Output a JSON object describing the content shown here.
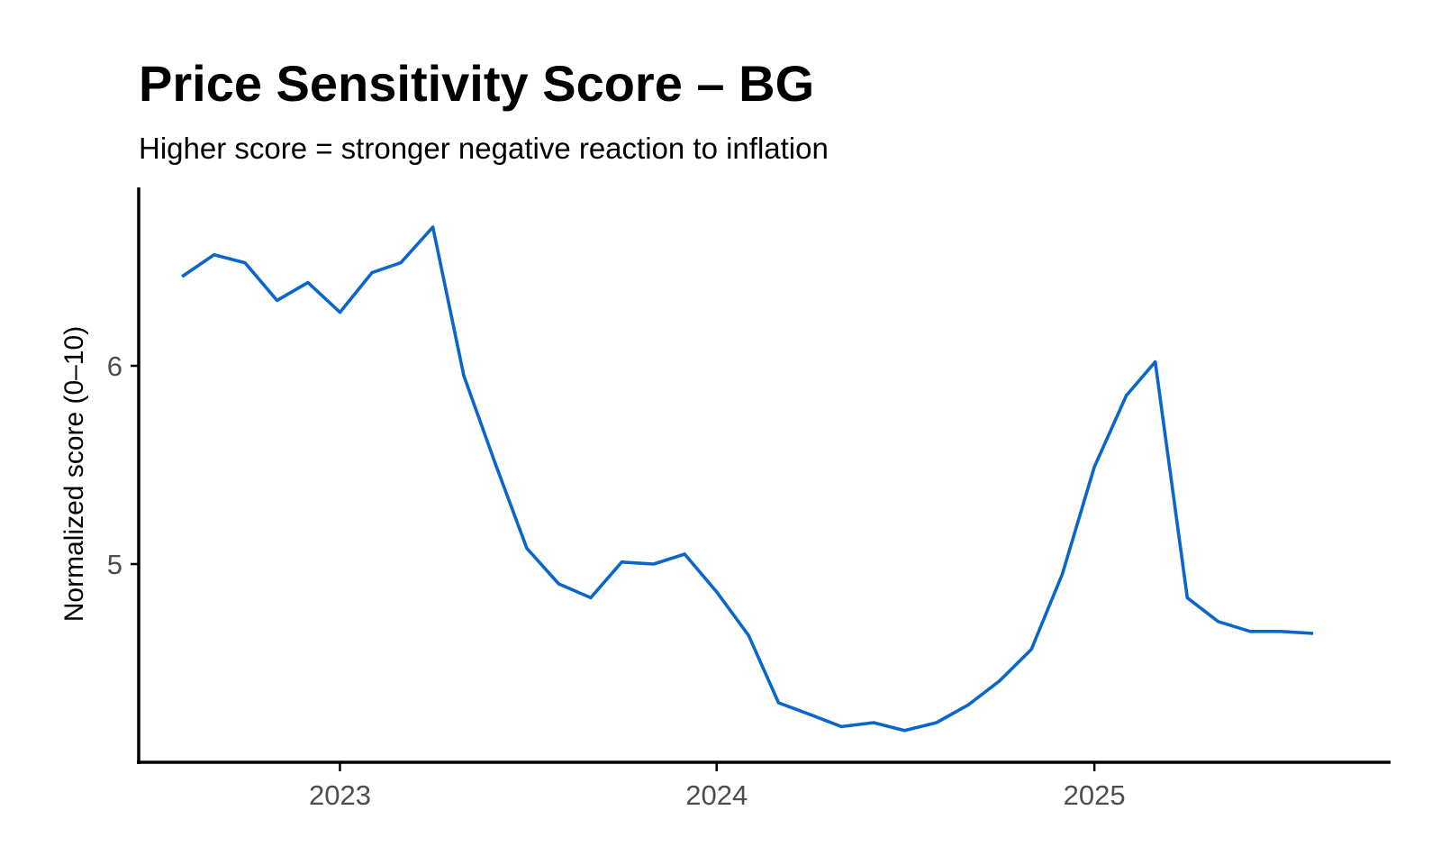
{
  "chart_data": {
    "type": "line",
    "title": "Price Sensitivity Score – BG",
    "subtitle": "Higher score = stronger negative reaction to inflation",
    "xlabel": "",
    "ylabel": "Normalized score (0–10)",
    "x_ticks": [
      "2023",
      "2024",
      "2025"
    ],
    "y_ticks": [
      "5",
      "6"
    ],
    "xlim": [
      "2022-06-20",
      "2025-10-15"
    ],
    "ylim": [
      4.0,
      6.9
    ],
    "grid": false,
    "legend": "none",
    "series": [
      {
        "color": "#0a66cc",
        "x": [
          "2022-08-01",
          "2022-09-01",
          "2022-10-01",
          "2022-11-01",
          "2022-12-01",
          "2023-01-01",
          "2023-02-01",
          "2023-03-01",
          "2023-04-01",
          "2023-05-01",
          "2023-06-01",
          "2023-07-01",
          "2023-08-01",
          "2023-09-01",
          "2023-10-01",
          "2023-11-01",
          "2023-12-01",
          "2024-01-01",
          "2024-02-01",
          "2024-03-01",
          "2024-04-01",
          "2024-05-01",
          "2024-06-01",
          "2024-07-01",
          "2024-08-01",
          "2024-09-01",
          "2024-10-01",
          "2024-11-01",
          "2024-12-01",
          "2025-01-01",
          "2025-02-01",
          "2025-03-01",
          "2025-04-01",
          "2025-05-01",
          "2025-06-01",
          "2025-07-01",
          "2025-08-01"
        ],
        "values": [
          6.45,
          6.56,
          6.52,
          6.33,
          6.42,
          6.27,
          6.47,
          6.52,
          6.7,
          5.95,
          5.5,
          5.08,
          4.9,
          4.83,
          5.01,
          5.0,
          5.05,
          4.86,
          4.64,
          4.3,
          4.24,
          4.18,
          4.2,
          4.16,
          4.2,
          4.29,
          4.41,
          4.57,
          4.95,
          5.49,
          5.85,
          6.02,
          4.83,
          4.71,
          4.66,
          4.66,
          4.65
        ]
      }
    ]
  }
}
